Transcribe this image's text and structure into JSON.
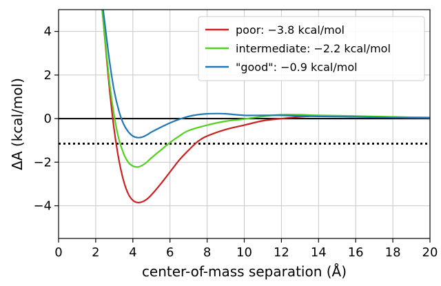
{
  "chart_data": {
    "type": "line",
    "xlabel": "center-of-mass separation (Å)",
    "ylabel": "ΔA (kcal/mol)",
    "xlim": [
      0,
      20
    ],
    "ylim": [
      -5.5,
      5
    ],
    "xticks": [
      0,
      2,
      4,
      6,
      8,
      10,
      12,
      14,
      16,
      18,
      20
    ],
    "yticks": [
      -4,
      -2,
      0,
      2,
      4
    ],
    "grid": true,
    "legend_position": "top-right",
    "reference_lines": [
      {
        "y": 0,
        "style": "solid",
        "color": "#000000"
      },
      {
        "y": -1.15,
        "style": "dotted",
        "color": "#000000"
      }
    ],
    "series": [
      {
        "name": "poor: −3.8 kcal/mol",
        "color": "#cc1f1f",
        "x": [
          2.35,
          2.5,
          2.75,
          3.0,
          3.25,
          3.5,
          3.75,
          4.0,
          4.25,
          4.5,
          4.75,
          5.0,
          5.5,
          6.0,
          6.5,
          7.0,
          7.5,
          8.0,
          9.0,
          10.0,
          11.0,
          12.0,
          13.0,
          14.0,
          16.0,
          18.0,
          20.0
        ],
        "y": [
          5.0,
          3.6,
          1.3,
          -0.55,
          -1.9,
          -2.85,
          -3.45,
          -3.75,
          -3.85,
          -3.82,
          -3.7,
          -3.5,
          -3.0,
          -2.45,
          -1.9,
          -1.45,
          -1.05,
          -0.8,
          -0.5,
          -0.3,
          -0.1,
          0.0,
          0.08,
          0.12,
          0.1,
          0.07,
          0.05
        ]
      },
      {
        "name": "intermediate: −2.2 kcal/mol",
        "color": "#4fd11f",
        "x": [
          2.35,
          2.5,
          2.75,
          3.0,
          3.25,
          3.5,
          3.75,
          4.0,
          4.25,
          4.5,
          4.75,
          5.0,
          5.5,
          6.0,
          6.5,
          7.0,
          8.0,
          9.0,
          10.0,
          11.0,
          12.0,
          13.0,
          14.0,
          16.0,
          18.0,
          20.0
        ],
        "y": [
          5.0,
          3.7,
          1.6,
          0.1,
          -0.95,
          -1.6,
          -2.0,
          -2.18,
          -2.22,
          -2.15,
          -2.0,
          -1.8,
          -1.45,
          -1.1,
          -0.8,
          -0.55,
          -0.3,
          -0.12,
          -0.02,
          0.1,
          0.18,
          0.18,
          0.15,
          0.12,
          0.08,
          0.05
        ]
      },
      {
        "name": "\"good\": −0.9 kcal/mol",
        "color": "#1f77b4",
        "x": [
          2.4,
          2.5,
          2.75,
          3.0,
          3.25,
          3.5,
          3.75,
          4.0,
          4.25,
          4.5,
          4.75,
          5.0,
          5.5,
          6.0,
          6.5,
          7.0,
          7.5,
          8.0,
          8.5,
          9.0,
          10.0,
          11.0,
          12.0,
          13.0,
          14.0,
          16.0,
          18.0,
          20.0
        ],
        "y": [
          5.0,
          4.3,
          2.6,
          1.25,
          0.35,
          -0.25,
          -0.6,
          -0.8,
          -0.87,
          -0.85,
          -0.75,
          -0.62,
          -0.4,
          -0.2,
          -0.03,
          0.1,
          0.18,
          0.22,
          0.23,
          0.22,
          0.15,
          0.15,
          0.15,
          0.12,
          0.1,
          0.08,
          0.05,
          0.03
        ]
      }
    ]
  }
}
